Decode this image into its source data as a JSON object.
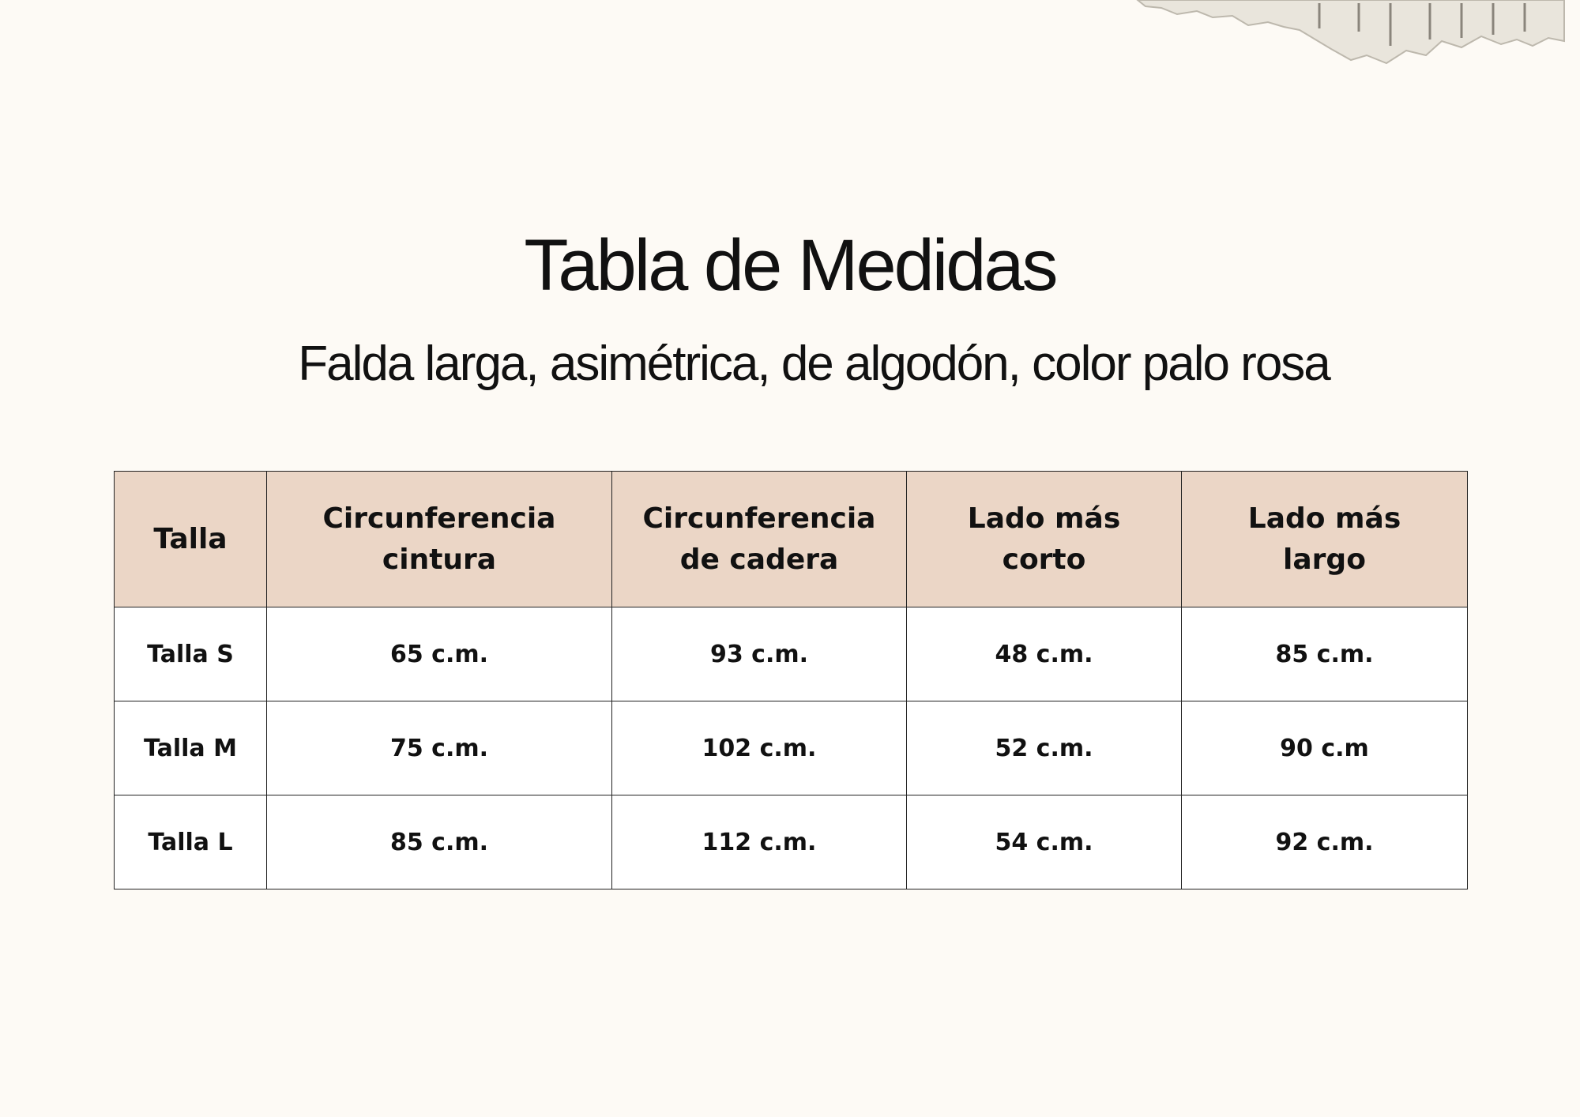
{
  "header": {
    "title": "Tabla de Medidas",
    "subtitle": "Falda larga, asimétrica, de algodón, color palo rosa"
  },
  "table": {
    "columns": [
      "Talla",
      "Circunferencia cintura",
      "Circunferencia de cadera",
      "Lado más corto",
      "Lado más largo"
    ],
    "rows": [
      [
        "Talla S",
        "65 c.m.",
        "93 c.m.",
        "48 c.m.",
        "85 c.m."
      ],
      [
        "Talla M",
        "75 c.m.",
        "102 c.m.",
        "52 c.m.",
        "90 c.m"
      ],
      [
        "Talla L",
        "85 c.m.",
        "112 c.m.",
        "54 c.m.",
        "92 c.m."
      ]
    ]
  }
}
